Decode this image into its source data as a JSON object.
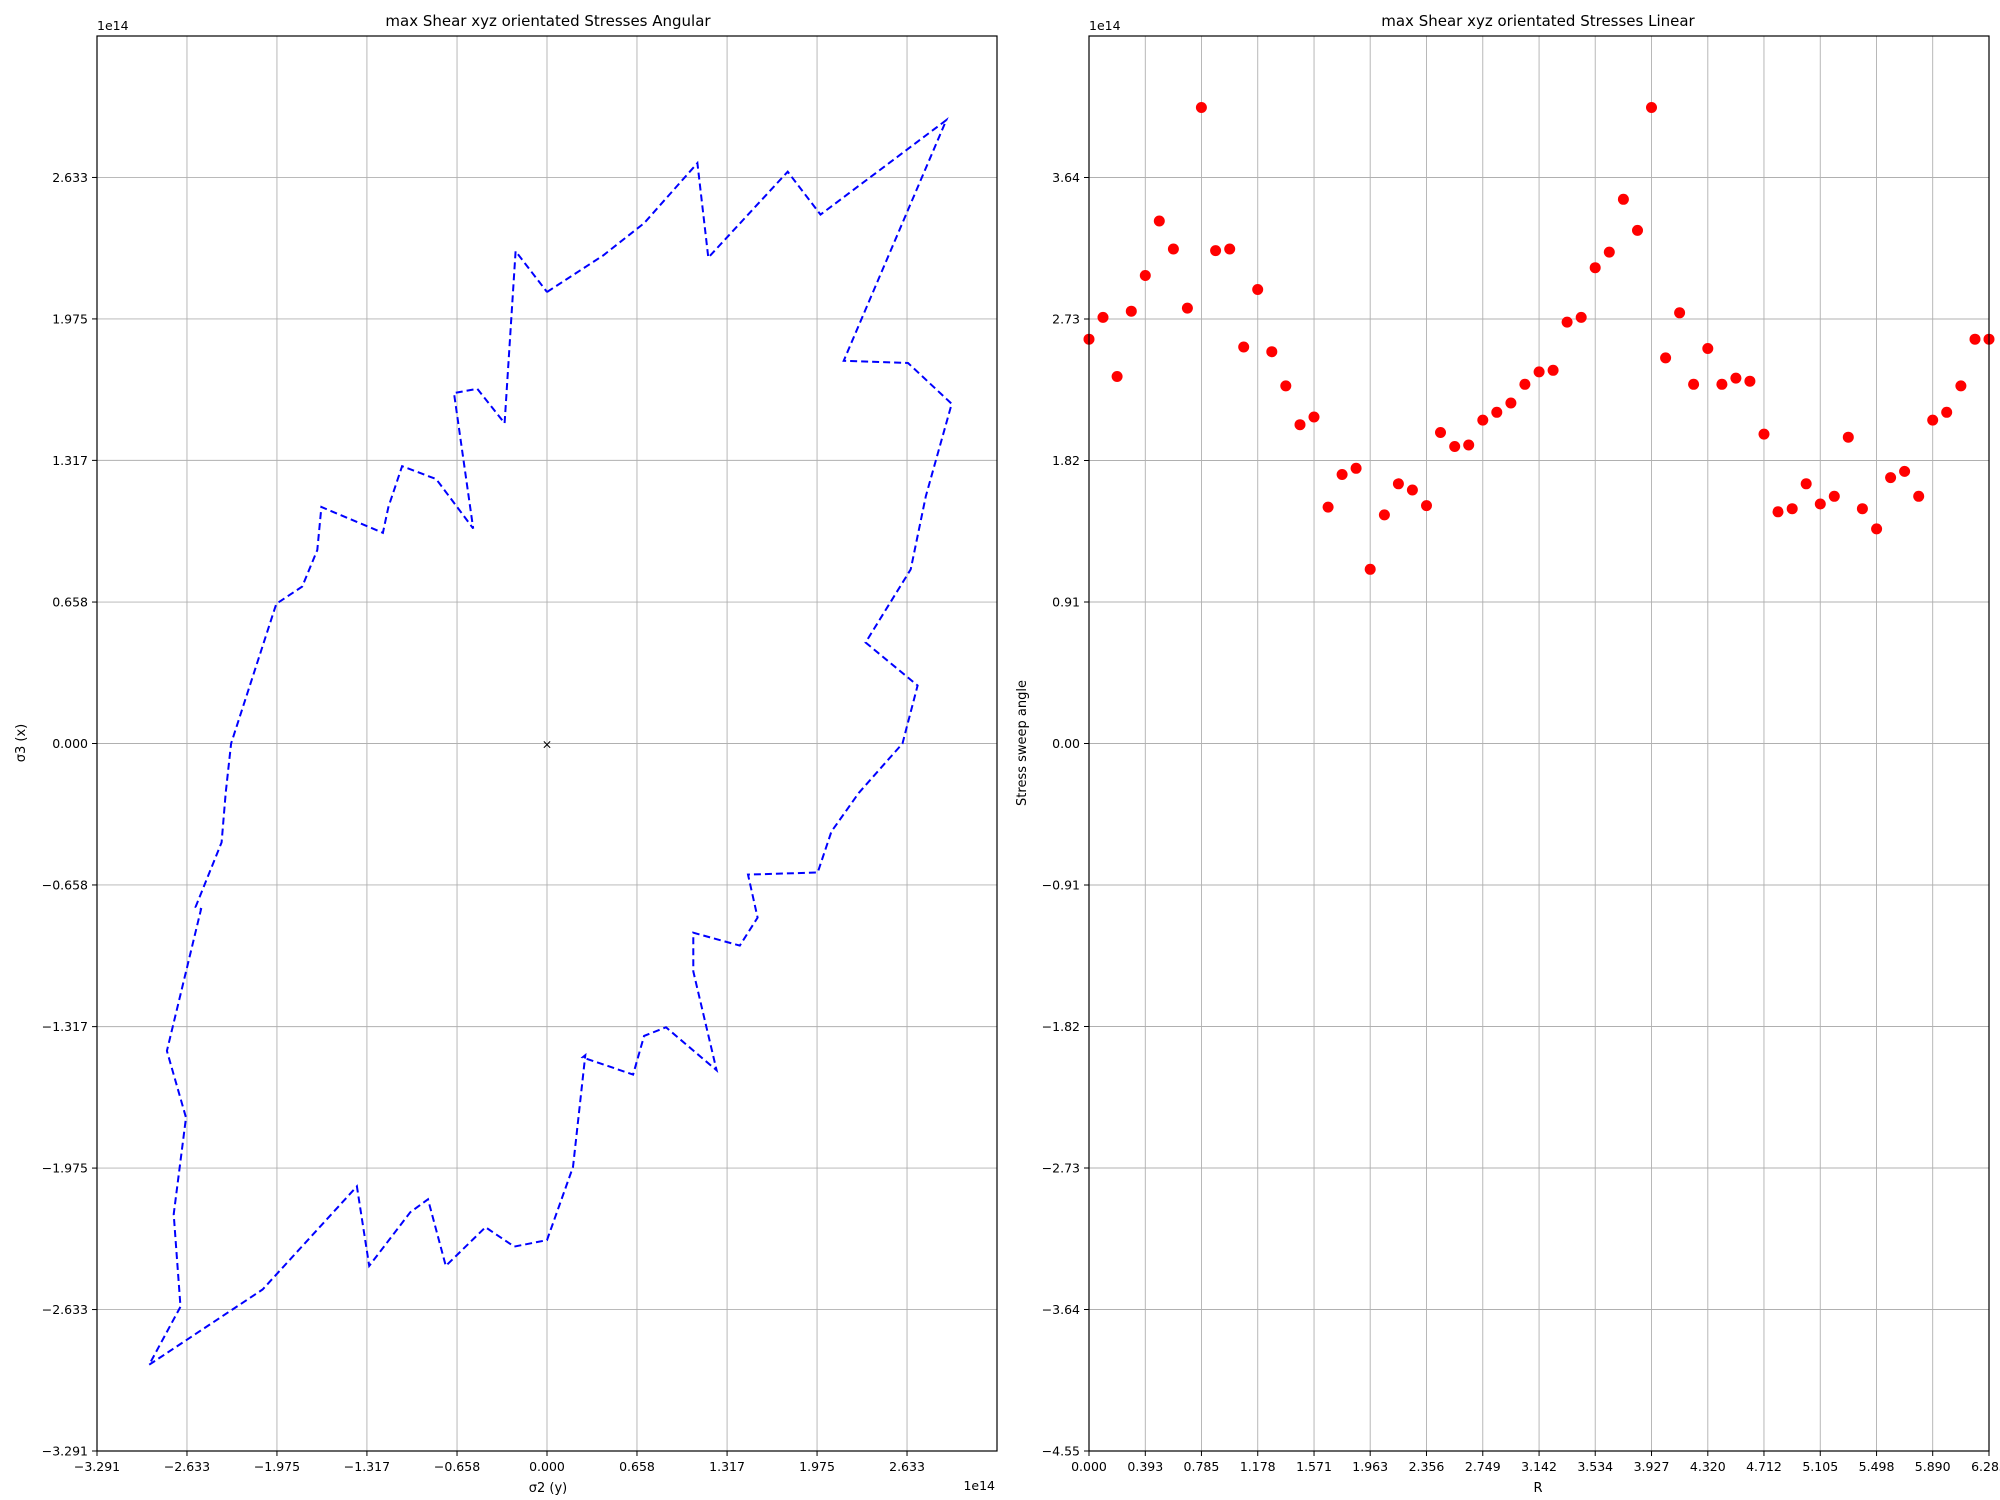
{
  "chart_data": [
    {
      "type": "line",
      "title": "max Shear  xyz  orientated Stresses Angular",
      "xlabel": "σ2 (y)",
      "ylabel": "σ3 (x)",
      "x_offset_label": "1e14",
      "y_offset_label": "1e14",
      "xlim": [
        -3.291,
        3.291
      ],
      "ylim": [
        -3.291,
        3.291
      ],
      "xticks": [
        -3.291,
        -2.633,
        -1.975,
        -1.317,
        -0.658,
        0.0,
        0.658,
        1.317,
        1.975,
        2.633
      ],
      "xtick_labels": [
        "−3.291",
        "−2.633",
        "−1.975",
        "−1.317",
        "−0.658",
        "0.000",
        "0.658",
        "1.317",
        "1.975",
        "2.633"
      ],
      "yticks": [
        -3.291,
        -2.633,
        -1.975,
        -1.317,
        -0.658,
        0.0,
        0.658,
        1.317,
        1.975,
        2.633
      ],
      "ytick_labels": [
        "−3.291",
        "−2.633",
        "−1.975",
        "−1.317",
        "−0.658",
        "0.000",
        "0.658",
        "1.317",
        "1.975",
        "2.633"
      ],
      "grid": true,
      "line_color": "#0000ff",
      "line_style": "dashed",
      "center_marker": "×",
      "center": [
        0,
        0
      ],
      "series": [
        {
          "x": [
            0.0,
            0.41,
            0.71,
            1.1,
            1.18,
            1.76,
            2.0,
            2.92,
            2.17,
            2.64,
            2.96,
            2.77,
            2.66,
            2.33,
            2.71,
            2.6,
            2.28,
            2.08,
            1.98,
            1.47,
            1.54,
            1.41,
            1.07,
            1.07,
            1.24,
            0.87,
            0.71,
            0.63,
            0.26,
            0.28,
            0.19,
            0.0,
            -0.24,
            -0.45,
            -0.74,
            -0.87,
            -1.0,
            -1.3,
            -1.39,
            -2.08,
            -2.91,
            -2.68,
            -2.73,
            -2.64,
            -2.78,
            -2.53,
            -2.57,
            -2.38,
            -2.35,
            -2.31,
            -1.98,
            -1.79,
            -1.68,
            -1.65,
            -1.2,
            -1.16,
            -1.06,
            -0.81,
            -0.54,
            -0.68,
            -0.51,
            -0.31,
            -0.23,
            0.0
          ],
          "y": [
            2.1,
            2.27,
            2.42,
            2.7,
            2.26,
            2.66,
            2.46,
            2.9,
            1.78,
            1.77,
            1.58,
            1.15,
            0.81,
            0.47,
            0.27,
            0.0,
            -0.23,
            -0.41,
            -0.6,
            -0.61,
            -0.81,
            -0.94,
            -0.88,
            -1.06,
            -1.52,
            -1.32,
            -1.36,
            -1.54,
            -1.46,
            -1.45,
            -1.97,
            -2.31,
            -2.34,
            -2.25,
            -2.43,
            -2.12,
            -2.18,
            -2.43,
            -2.06,
            -2.54,
            -2.89,
            -2.62,
            -2.19,
            -1.74,
            -1.43,
            -0.77,
            -0.76,
            -0.46,
            -0.23,
            0.0,
            0.65,
            0.73,
            0.9,
            1.1,
            0.98,
            1.1,
            1.29,
            1.23,
            1.0,
            1.63,
            1.65,
            1.49,
            2.29,
            2.1
          ]
        }
      ]
    },
    {
      "type": "scatter",
      "title": "max Shear  xyz  orientated Stresses Linear",
      "xlabel": "R",
      "ylabel": "Stress sweep angle",
      "y_offset_label": "1e14",
      "xlim": [
        0.0,
        6.283
      ],
      "ylim": [
        -4.55,
        4.55
      ],
      "xticks": [
        0.0,
        0.393,
        0.785,
        1.178,
        1.571,
        1.963,
        2.356,
        2.749,
        3.142,
        3.534,
        3.927,
        4.32,
        4.712,
        5.105,
        5.498,
        5.89,
        6.283
      ],
      "xtick_labels": [
        "0.000",
        "0.393",
        "0.785",
        "1.178",
        "1.571",
        "1.963",
        "2.356",
        "2.749",
        "3.142",
        "3.534",
        "3.927",
        "4.320",
        "4.712",
        "5.105",
        "5.498",
        "5.890",
        "6.283"
      ],
      "yticks": [
        -4.55,
        -3.64,
        -2.73,
        -1.82,
        -0.91,
        0.0,
        0.91,
        1.82,
        2.73,
        3.64
      ],
      "ytick_labels": [
        "−4.55",
        "−3.64",
        "−2.73",
        "−1.82",
        "−0.91",
        "0.00",
        "0.91",
        "1.82",
        "2.73",
        "3.64"
      ],
      "grid": true,
      "marker_color": "#ff0000",
      "series": [
        {
          "x": [
            0.0,
            0.098,
            0.196,
            0.295,
            0.393,
            0.491,
            0.589,
            0.687,
            0.785,
            0.884,
            0.982,
            1.08,
            1.178,
            1.276,
            1.374,
            1.473,
            1.571,
            1.669,
            1.767,
            1.865,
            1.963,
            2.062,
            2.16,
            2.258,
            2.356,
            2.454,
            2.553,
            2.651,
            2.749,
            2.847,
            2.945,
            3.043,
            3.142,
            3.24,
            3.338,
            3.436,
            3.534,
            3.632,
            3.731,
            3.829,
            3.927,
            4.025,
            4.123,
            4.221,
            4.32,
            4.418,
            4.516,
            4.614,
            4.712,
            4.81,
            4.909,
            5.007,
            5.105,
            5.203,
            5.301,
            5.399,
            5.498,
            5.596,
            5.694,
            5.792,
            5.89,
            5.988,
            6.087,
            6.185,
            6.283
          ],
          "y": [
            2.6,
            2.74,
            2.36,
            2.78,
            3.01,
            3.36,
            3.18,
            2.8,
            4.09,
            3.17,
            3.18,
            2.55,
            2.92,
            2.52,
            2.3,
            2.05,
            2.1,
            1.52,
            1.73,
            1.77,
            1.12,
            1.47,
            1.67,
            1.63,
            1.53,
            2.0,
            1.91,
            1.92,
            2.08,
            2.13,
            2.19,
            2.31,
            2.39,
            2.4,
            2.71,
            2.74,
            3.06,
            3.16,
            3.5,
            3.3,
            4.09,
            2.48,
            2.77,
            2.31,
            2.54,
            2.31,
            2.35,
            2.33,
            1.99,
            1.49,
            1.51,
            1.67,
            1.54,
            1.59,
            1.97,
            1.51,
            1.38,
            1.71,
            1.75,
            1.59,
            2.08,
            2.13,
            2.3,
            2.6,
            2.6
          ]
        }
      ]
    }
  ]
}
